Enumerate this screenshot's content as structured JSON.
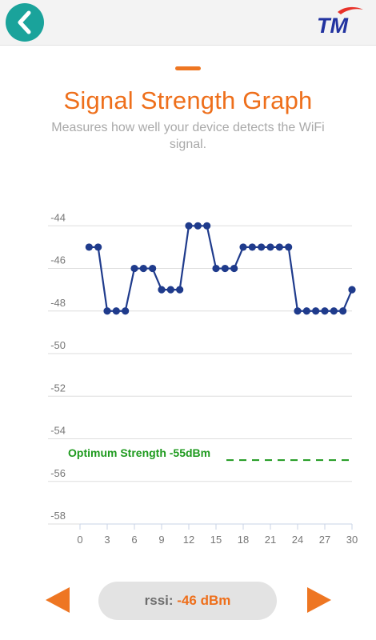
{
  "header": {
    "back_icon": "chevron-left-icon",
    "logo_text": "TM",
    "colors": {
      "back_button": "#1aa39b",
      "bar": "#f3f3f3"
    }
  },
  "page": {
    "title": "Signal Strength Graph",
    "subtitle": "Measures how well your device detects the WiFi signal.",
    "colors": {
      "accent": "#ee7622",
      "subtitle": "#a9a9a9"
    }
  },
  "chart_data": {
    "type": "line",
    "title": "",
    "xlabel": "",
    "ylabel": "",
    "x": [
      1,
      2,
      3,
      4,
      5,
      6,
      7,
      8,
      9,
      10,
      11,
      12,
      13,
      14,
      15,
      16,
      17,
      18,
      19,
      20,
      21,
      22,
      23,
      24,
      25,
      26,
      27,
      28,
      29,
      30
    ],
    "series": [
      {
        "values": [
          -45,
          -45,
          -48,
          -48,
          -48,
          -46,
          -46,
          -46,
          -47,
          -47,
          -47,
          -44,
          -44,
          -44,
          -46,
          -46,
          -46,
          -45,
          -45,
          -45,
          -45,
          -45,
          -45,
          -48,
          -48,
          -48,
          -48,
          -48,
          -48,
          -47
        ],
        "color": "#1f3b8c"
      }
    ],
    "xlim": [
      0,
      30
    ],
    "ylim": [
      -58,
      -43.2
    ],
    "x_ticks": [
      "0",
      "3",
      "6",
      "9",
      "12",
      "15",
      "18",
      "21",
      "24",
      "27",
      "30"
    ],
    "y_ticks": [
      "-44",
      "-46",
      "-48",
      "-50",
      "-52",
      "-54",
      "-56",
      "-58"
    ],
    "grid": true,
    "reference_line": {
      "value": -55,
      "label": "Optimum Strength -55dBm",
      "color": "#1e9a1e",
      "style": "dashed"
    }
  },
  "footer": {
    "rssi_label": "rssi:",
    "rssi_value": "-46 dBm",
    "prev_icon": "arrow-left-icon",
    "next_icon": "arrow-right-icon",
    "colors": {
      "arrows": "#ee7622",
      "pill": "#e3e3e3"
    }
  }
}
